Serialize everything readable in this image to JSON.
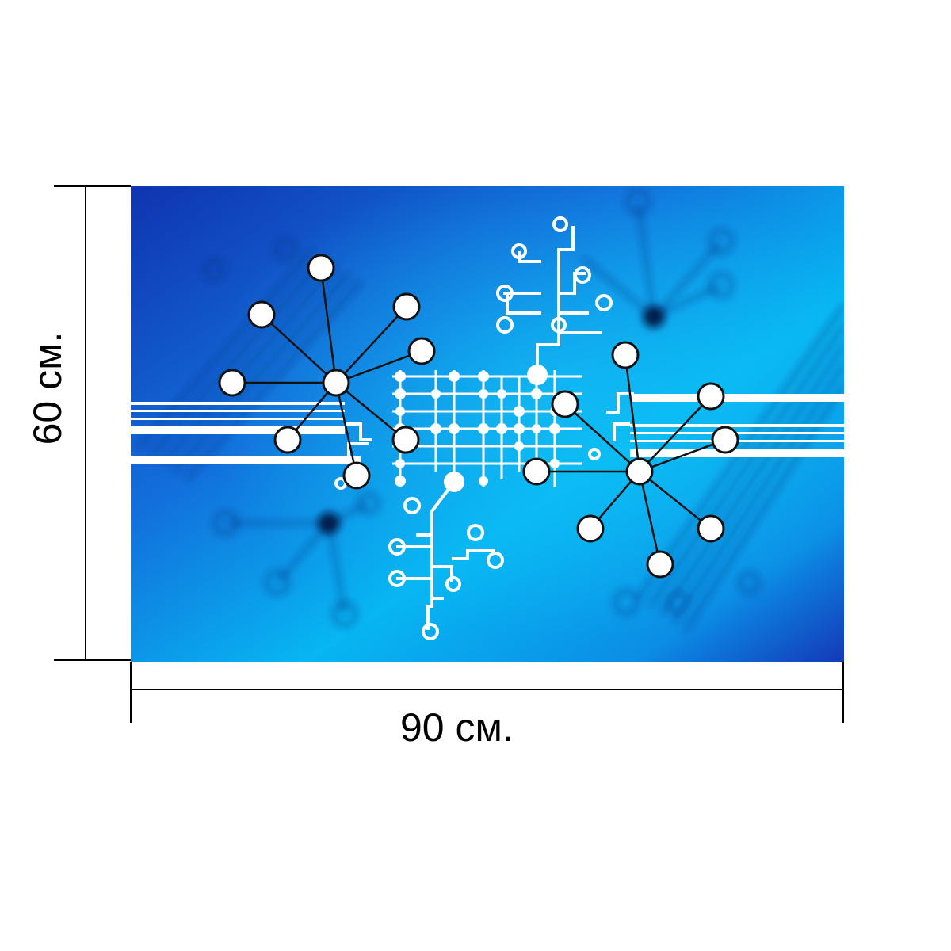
{
  "product": {
    "width_label": "90 см.",
    "height_label": "60 см."
  },
  "artwork": {
    "icon": "circuit-network-icon",
    "colors": {
      "deep_blue": "#1034b0",
      "mid_blue": "#1270dc",
      "light_blue": "#07b6f2",
      "white": "#ffffff",
      "node_stroke": "#111111"
    }
  }
}
